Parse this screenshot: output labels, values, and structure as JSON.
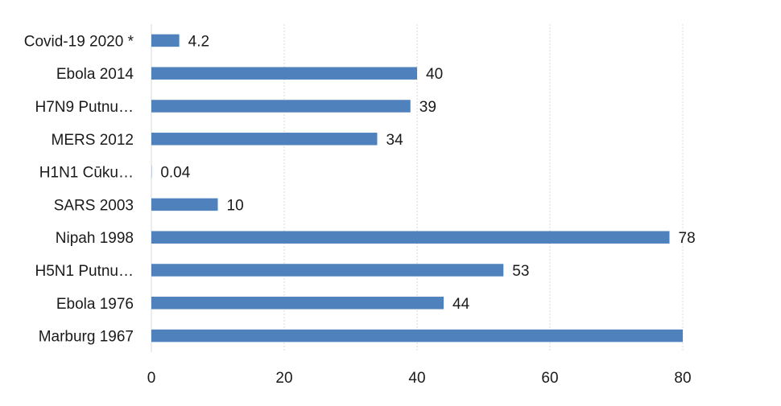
{
  "chart_data": {
    "type": "bar",
    "orientation": "horizontal",
    "categories": [
      "Covid-19 2020 *",
      "Ebola 2014",
      "H7N9 Putnu…",
      "MERS 2012",
      "H1N1 Cūku…",
      "SARS 2003",
      "Nipah 1998",
      "H5N1 Putnu…",
      "Ebola 1976",
      "Marburg 1967"
    ],
    "values": [
      4.2,
      40,
      39,
      34,
      0.04,
      10,
      78,
      53,
      44,
      80
    ],
    "data_labels": [
      "4.2",
      "40",
      "39",
      "34",
      "0.04",
      "10",
      "78",
      "53",
      "44",
      ""
    ],
    "xlim": [
      0,
      80
    ],
    "xticks": [
      0,
      20,
      40,
      60,
      80
    ],
    "grid": "vertical",
    "legend": "none",
    "title": "",
    "xlabel": "",
    "ylabel": "",
    "bar_color": "#4f81bd",
    "grid_color": "#d9d9d9"
  }
}
